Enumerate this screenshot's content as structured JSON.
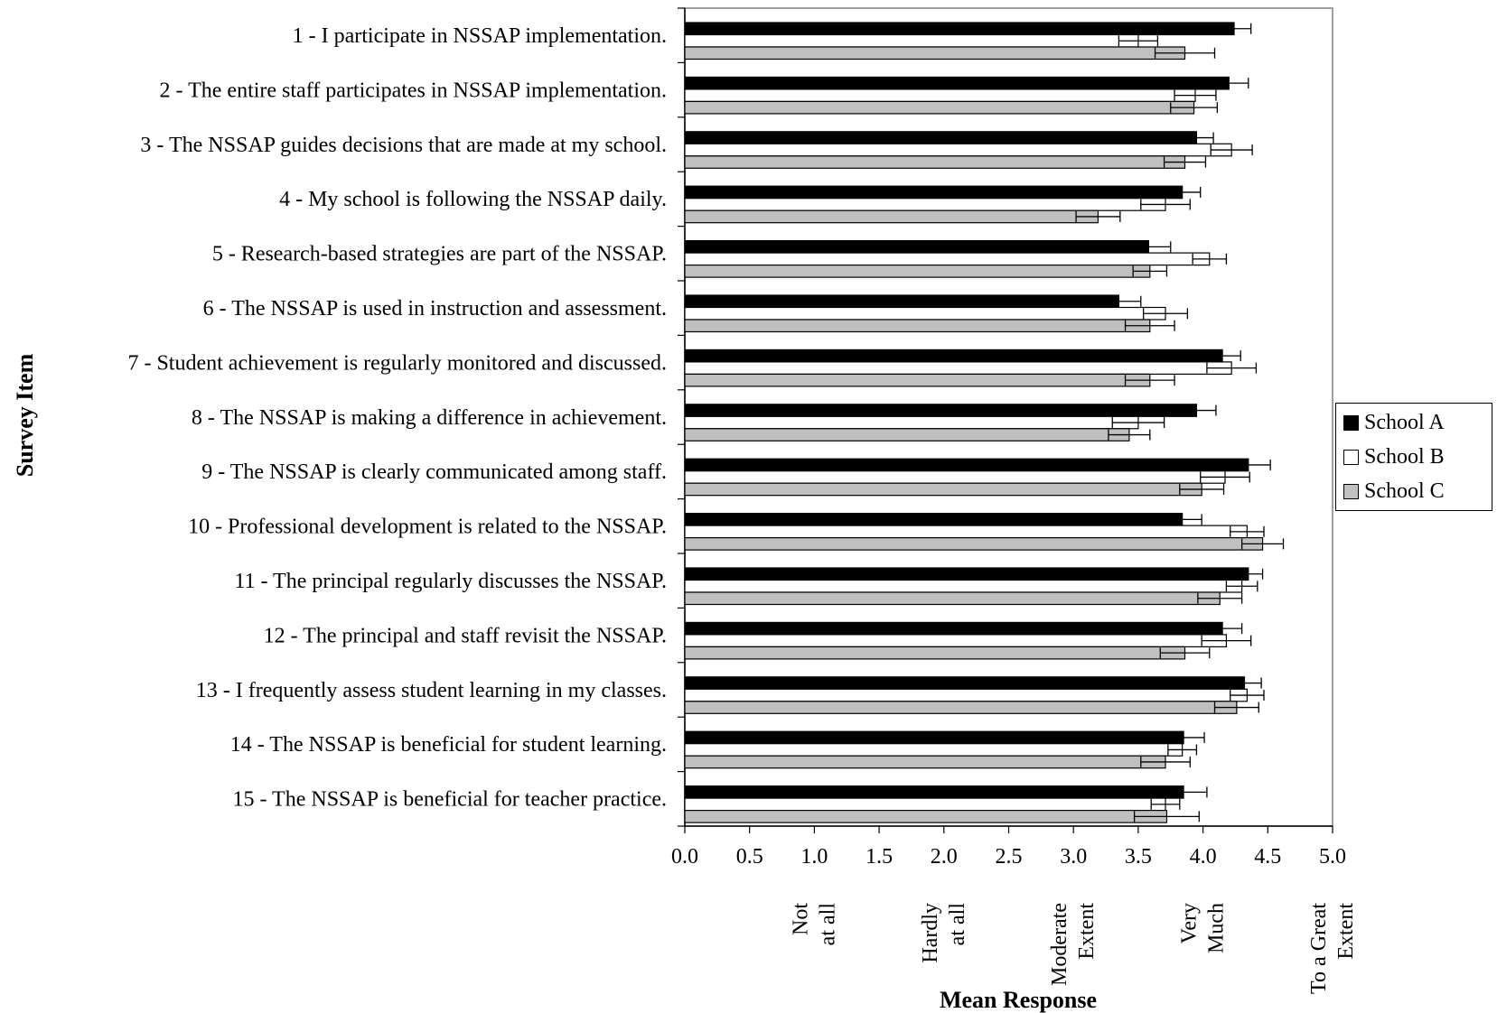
{
  "chart_data": {
    "type": "bar",
    "orientation": "horizontal",
    "ylabel": "Survey Item",
    "xlabel": "Mean Response",
    "xlim": [
      0,
      5
    ],
    "xticks": [
      "0.0",
      "0.5",
      "1.0",
      "1.5",
      "2.0",
      "2.5",
      "3.0",
      "3.5",
      "4.0",
      "4.5",
      "5.0"
    ],
    "scale_labels": [
      {
        "value": 1,
        "text": "Not at all"
      },
      {
        "value": 2,
        "text": "Hardly at all"
      },
      {
        "value": 3,
        "text": "Moderate Extent"
      },
      {
        "value": 4,
        "text": "Very Much"
      },
      {
        "value": 5,
        "text": "To a Great Extent"
      }
    ],
    "grid": false,
    "legend_position": "right",
    "categories": [
      "1 - I participate in  NSSAP implementation.",
      "2 - The entire staff participates in NSSAP implementation.",
      "3 - The NSSAP guides decisions that are made at my school.",
      "4 - My school is following the NSSAP daily.",
      "5 - Research-based strategies are part of the NSSAP.",
      "6 - The NSSAP is used in instruction and assessment.",
      "7 - Student achievement is regularly monitored and discussed.",
      "8 - The NSSAP is making a difference in achievement.",
      "9 - The NSSAP is clearly communicated among staff.",
      "10 - Professional development is related to the NSSAP.",
      "11 - The principal regularly discusses the NSSAP.",
      "12 - The principal and staff revisit the NSSAP.",
      "13 - I frequently assess student learning in my classes.",
      "14 - The NSSAP is beneficial for student learning.",
      "15 - The NSSAP is beneficial for teacher practice."
    ],
    "series": [
      {
        "name": "School A",
        "color": "#000000",
        "values": [
          4.24,
          4.2,
          3.95,
          3.84,
          3.58,
          3.35,
          4.15,
          3.95,
          4.35,
          3.84,
          4.35,
          4.15,
          4.32,
          3.85,
          3.85
        ],
        "errors": [
          0.13,
          0.15,
          0.13,
          0.14,
          0.17,
          0.17,
          0.14,
          0.15,
          0.17,
          0.15,
          0.11,
          0.15,
          0.13,
          0.16,
          0.18
        ]
      },
      {
        "name": "School B",
        "color": "#ffffff",
        "values": [
          3.5,
          3.94,
          4.22,
          3.71,
          4.05,
          3.71,
          4.22,
          3.5,
          4.17,
          4.34,
          4.3,
          4.18,
          4.34,
          3.84,
          3.71
        ],
        "errors": [
          0.15,
          0.16,
          0.16,
          0.19,
          0.13,
          0.17,
          0.19,
          0.2,
          0.19,
          0.13,
          0.12,
          0.19,
          0.13,
          0.11,
          0.11
        ]
      },
      {
        "name": "School C",
        "color": "#c0c0c0",
        "values": [
          3.86,
          3.93,
          3.86,
          3.19,
          3.59,
          3.59,
          3.59,
          3.43,
          3.99,
          4.46,
          4.13,
          3.86,
          4.26,
          3.71,
          3.72
        ],
        "errors": [
          0.23,
          0.18,
          0.16,
          0.17,
          0.13,
          0.19,
          0.19,
          0.16,
          0.17,
          0.16,
          0.17,
          0.19,
          0.17,
          0.19,
          0.25
        ]
      }
    ]
  }
}
